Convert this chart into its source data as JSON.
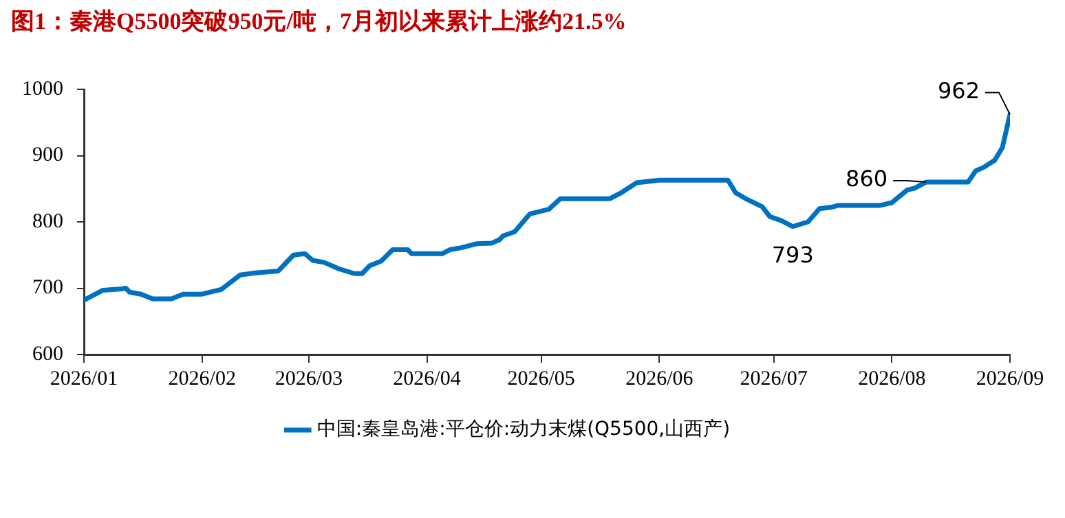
{
  "chart_data": {
    "type": "line",
    "title": "图1：秦港Q5500突破950元/吨，7月初以来累计上涨约21.5%",
    "x": [
      "2026-01-01",
      "2026-01-06",
      "2026-01-11",
      "2026-01-12",
      "2026-01-13",
      "2026-01-16",
      "2026-01-19",
      "2026-01-24",
      "2026-01-27",
      "2026-02-01",
      "2026-02-03",
      "2026-02-06",
      "2026-02-11",
      "2026-02-15",
      "2026-02-21",
      "2026-02-25",
      "2026-02-28",
      "2026-03-02",
      "2026-03-05",
      "2026-03-09",
      "2026-03-13",
      "2026-03-15",
      "2026-03-17",
      "2026-03-20",
      "2026-03-23",
      "2026-03-27",
      "2026-03-28",
      "2026-04-05",
      "2026-04-07",
      "2026-04-10",
      "2026-04-14",
      "2026-04-18",
      "2026-04-20",
      "2026-04-21",
      "2026-04-24",
      "2026-04-28",
      "2026-05-03",
      "2026-05-06",
      "2026-05-19",
      "2026-05-22",
      "2026-05-26",
      "2026-06-01",
      "2026-06-19",
      "2026-06-21",
      "2026-06-24",
      "2026-06-28",
      "2026-06-30",
      "2026-07-03",
      "2026-07-06",
      "2026-07-10",
      "2026-07-13",
      "2026-07-16",
      "2026-07-18",
      "2026-07-29",
      "2026-08-01",
      "2026-08-05",
      "2026-08-07",
      "2026-08-10",
      "2026-08-21",
      "2026-08-23",
      "2026-08-25",
      "2026-08-28",
      "2026-08-30",
      "2026-09-01"
    ],
    "series": [
      {
        "name": "中国:秦皇岛港:平仓价:动力末煤(Q5500,山西产)",
        "color": "#0070c0",
        "values": [
          682,
          697,
          699,
          700,
          694,
          691,
          684,
          684,
          691,
          691,
          694,
          698,
          720,
          723,
          726,
          750,
          752,
          742,
          739,
          729,
          722,
          722,
          734,
          741,
          758,
          758,
          752,
          752,
          758,
          761,
          767,
          768,
          773,
          779,
          785,
          812,
          819,
          835,
          835,
          844,
          859,
          863,
          863,
          844,
          834,
          823,
          808,
          802,
          793,
          800,
          820,
          822,
          825,
          825,
          829,
          848,
          851,
          860,
          860,
          877,
          882,
          893,
          912,
          962
        ]
      }
    ],
    "xlim": [
      "2026-01-01",
      "2026-09-01"
    ],
    "xticks": [
      {
        "value": "2026-01-01",
        "label": "2026/01"
      },
      {
        "value": "2026-02-01",
        "label": "2026/02"
      },
      {
        "value": "2026-03-01",
        "label": "2026/03"
      },
      {
        "value": "2026-04-01",
        "label": "2026/04"
      },
      {
        "value": "2026-05-01",
        "label": "2026/05"
      },
      {
        "value": "2026-06-01",
        "label": "2026/06"
      },
      {
        "value": "2026-07-01",
        "label": "2026/07"
      },
      {
        "value": "2026-08-01",
        "label": "2026/08"
      },
      {
        "value": "2026-09-01",
        "label": "2026/09"
      }
    ],
    "ylim": [
      600,
      1000
    ],
    "yticks": [
      600,
      700,
      800,
      900,
      1000
    ],
    "annotations": [
      {
        "text": "962",
        "x": "2026-09-01",
        "y": 962
      },
      {
        "text": "860",
        "x": "2026-08-10",
        "y": 860
      },
      {
        "text": "793",
        "x": "2026-07-06",
        "y": 793
      }
    ],
    "grid": false,
    "legend": "bottom",
    "marker": "none",
    "line_style": "solid"
  }
}
